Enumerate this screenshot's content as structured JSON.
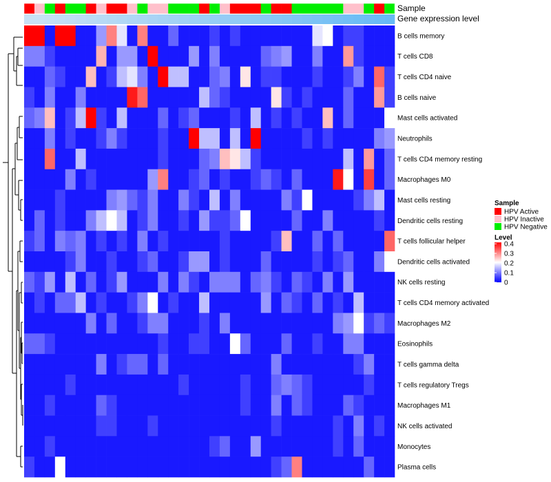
{
  "chart_data": {
    "type": "heatmap",
    "annotation_labels": {
      "sample": "Sample",
      "expression": "Gene expression level"
    },
    "legend_sample": {
      "title": "Sample",
      "entries": [
        {
          "name": "HPV Active",
          "color": "#ff0000"
        },
        {
          "name": "HPV Inactive",
          "color": "#ffc0cb"
        },
        {
          "name": "HPV Negative",
          "color": "#00ee00"
        }
      ]
    },
    "legend_level": {
      "title": "Level",
      "ticks": [
        "0",
        "0.1",
        "0.2",
        "0.3",
        "0.4"
      ],
      "range": [
        0,
        0.4
      ],
      "colors": {
        "low": "#0000ff",
        "mid": "#ffffff",
        "high": "#ff0000"
      }
    },
    "samples": [
      "A",
      "I",
      "N",
      "A",
      "N",
      "N",
      "A",
      "I",
      "A",
      "A",
      "I",
      "N",
      "I",
      "I",
      "N",
      "N",
      "N",
      "A",
      "N",
      "I",
      "A",
      "A",
      "A",
      "N",
      "A",
      "A",
      "N",
      "N",
      "N",
      "N",
      "N",
      "I",
      "I",
      "N",
      "A",
      "N"
    ],
    "expression_annotation": [
      0.7,
      0.7,
      0.72,
      0.74,
      0.76,
      0.78,
      0.8,
      0.82,
      0.84,
      0.86,
      0.88,
      0.9,
      0.92,
      0.94,
      0.96,
      0.98,
      1.0,
      1.02,
      1.04,
      1.06,
      1.08,
      1.1,
      1.12,
      1.14,
      1.16,
      1.18,
      1.2,
      1.22,
      1.24,
      1.26,
      1.28,
      1.3,
      1.32,
      1.34,
      1.36,
      1.38
    ],
    "rows": [
      "B cells memory",
      "T cells CD8",
      "T cells CD4 naive",
      "B cells naive",
      "Mast cells activated",
      "Neutrophils",
      "T cells CD4 memory resting",
      "Macrophages M0",
      "Mast cells resting",
      "Dendritic cells resting",
      "T cells follicular helper",
      "Dendritic cells activated",
      "NK cells resting",
      "T cells CD4 memory activated",
      "Macrophages M2",
      "Eosinophils",
      "T cells gamma delta",
      "T cells regulatory  Tregs",
      "Macrophages M1",
      "NK cells activated",
      "Monocytes",
      "Plasma cells"
    ],
    "values": [
      [
        0.4,
        0.4,
        0.02,
        0.4,
        0.4,
        0.02,
        0.02,
        0.12,
        0.3,
        0.18,
        0.02,
        0.3,
        0.02,
        0.02,
        0.08,
        0.02,
        0.02,
        0.02,
        0.05,
        0.02,
        0.05,
        0.02,
        0.02,
        0.02,
        0.02,
        0.02,
        0.02,
        0.02,
        0.18,
        0.2,
        0.02,
        0.05,
        0.05,
        0.02,
        0.02,
        0.02
      ],
      [
        0.1,
        0.1,
        0.05,
        0.02,
        0.02,
        0.02,
        0.02,
        0.26,
        0.02,
        0.12,
        0.12,
        0.02,
        0.4,
        0.02,
        0.02,
        0.02,
        0.12,
        0.02,
        0.1,
        0.02,
        0.02,
        0.02,
        0.02,
        0.08,
        0.1,
        0.12,
        0.02,
        0.02,
        0.1,
        0.02,
        0.02,
        0.28,
        0.05,
        0.02,
        0.02,
        0.02
      ],
      [
        0.02,
        0.02,
        0.08,
        0.05,
        0.02,
        0.02,
        0.25,
        0.02,
        0.05,
        0.15,
        0.18,
        0.1,
        0.02,
        0.4,
        0.15,
        0.15,
        0.02,
        0.02,
        0.08,
        0.1,
        0.02,
        0.22,
        0.02,
        0.05,
        0.05,
        0.02,
        0.02,
        0.02,
        0.05,
        0.02,
        0.02,
        0.05,
        0.1,
        0.02,
        0.32,
        0.05
      ],
      [
        0.05,
        0.02,
        0.1,
        0.02,
        0.02,
        0.1,
        0.02,
        0.02,
        0.02,
        0.02,
        0.38,
        0.32,
        0.02,
        0.02,
        0.02,
        0.02,
        0.02,
        0.15,
        0.08,
        0.05,
        0.02,
        0.02,
        0.02,
        0.02,
        0.22,
        0.05,
        0.02,
        0.05,
        0.02,
        0.02,
        0.02,
        0.08,
        0.02,
        0.02,
        0.28,
        0.05
      ],
      [
        0.08,
        0.1,
        0.25,
        0.02,
        0.05,
        0.15,
        0.4,
        0.05,
        0.02,
        0.15,
        0.02,
        0.02,
        0.02,
        0.08,
        0.02,
        0.05,
        0.08,
        0.02,
        0.02,
        0.02,
        0.05,
        0.02,
        0.15,
        0.02,
        0.05,
        0.02,
        0.05,
        0.02,
        0.02,
        0.25,
        0.02,
        0.08,
        0.02,
        0.02,
        0.02,
        0.2
      ],
      [
        0.02,
        0.02,
        0.1,
        0.02,
        0.05,
        0.02,
        0.02,
        0.05,
        0.1,
        0.05,
        0.02,
        0.02,
        0.02,
        0.05,
        0.02,
        0.02,
        0.4,
        0.15,
        0.15,
        0.02,
        0.15,
        0.02,
        0.4,
        0.02,
        0.02,
        0.02,
        0.02,
        0.05,
        0.02,
        0.05,
        0.02,
        0.02,
        0.02,
        0.02,
        0.1,
        0.12
      ],
      [
        0.02,
        0.02,
        0.32,
        0.02,
        0.02,
        0.15,
        0.02,
        0.02,
        0.02,
        0.02,
        0.02,
        0.02,
        0.02,
        0.05,
        0.02,
        0.02,
        0.02,
        0.08,
        0.1,
        0.25,
        0.22,
        0.15,
        0.05,
        0.02,
        0.02,
        0.02,
        0.02,
        0.02,
        0.02,
        0.02,
        0.02,
        0.15,
        0.02,
        0.28,
        0.02,
        0.08
      ],
      [
        0.02,
        0.02,
        0.02,
        0.02,
        0.1,
        0.02,
        0.05,
        0.02,
        0.02,
        0.02,
        0.02,
        0.02,
        0.12,
        0.3,
        0.02,
        0.02,
        0.05,
        0.08,
        0.02,
        0.05,
        0.02,
        0.02,
        0.05,
        0.08,
        0.05,
        0.02,
        0.08,
        0.02,
        0.02,
        0.02,
        0.38,
        0.2,
        0.02,
        0.35,
        0.02,
        0.08
      ],
      [
        0.02,
        0.02,
        0.02,
        0.05,
        0.02,
        0.02,
        0.02,
        0.02,
        0.1,
        0.12,
        0.08,
        0.05,
        0.1,
        0.02,
        0.02,
        0.1,
        0.05,
        0.02,
        0.15,
        0.02,
        0.1,
        0.02,
        0.02,
        0.02,
        0.02,
        0.1,
        0.05,
        0.2,
        0.02,
        0.02,
        0.02,
        0.02,
        0.05,
        0.1,
        0.15,
        0.02
      ],
      [
        0.02,
        0.08,
        0.02,
        0.05,
        0.02,
        0.02,
        0.1,
        0.15,
        0.2,
        0.15,
        0.02,
        0.05,
        0.1,
        0.02,
        0.02,
        0.05,
        0.02,
        0.12,
        0.05,
        0.05,
        0.08,
        0.2,
        0.02,
        0.02,
        0.02,
        0.02,
        0.08,
        0.02,
        0.02,
        0.1,
        0.02,
        0.02,
        0.02,
        0.02,
        0.05,
        0.02
      ],
      [
        0.05,
        0.08,
        0.02,
        0.1,
        0.08,
        0.1,
        0.02,
        0.05,
        0.02,
        0.05,
        0.02,
        0.1,
        0.02,
        0.05,
        0.02,
        0.02,
        0.02,
        0.02,
        0.02,
        0.05,
        0.02,
        0.02,
        0.02,
        0.02,
        0.05,
        0.25,
        0.02,
        0.02,
        0.08,
        0.02,
        0.08,
        0.02,
        0.02,
        0.02,
        0.02,
        0.32
      ],
      [
        0.02,
        0.02,
        0.02,
        0.02,
        0.05,
        0.1,
        0.02,
        0.02,
        0.05,
        0.02,
        0.02,
        0.05,
        0.08,
        0.02,
        0.02,
        0.05,
        0.12,
        0.12,
        0.02,
        0.05,
        0.02,
        0.02,
        0.02,
        0.08,
        0.02,
        0.02,
        0.02,
        0.02,
        0.05,
        0.02,
        0.05,
        0.08,
        0.02,
        0.02,
        0.1,
        0.2
      ],
      [
        0.08,
        0.05,
        0.12,
        0.02,
        0.15,
        0.02,
        0.08,
        0.02,
        0.05,
        0.12,
        0.02,
        0.02,
        0.02,
        0.1,
        0.02,
        0.1,
        0.05,
        0.02,
        0.1,
        0.1,
        0.1,
        0.02,
        0.08,
        0.1,
        0.05,
        0.02,
        0.08,
        0.05,
        0.02,
        0.1,
        0.02,
        0.12,
        0.02,
        0.02,
        0.02,
        0.02
      ],
      [
        0.02,
        0.05,
        0.02,
        0.08,
        0.08,
        0.15,
        0.02,
        0.05,
        0.02,
        0.02,
        0.05,
        0.1,
        0.2,
        0.02,
        0.05,
        0.02,
        0.02,
        0.15,
        0.02,
        0.02,
        0.02,
        0.02,
        0.02,
        0.12,
        0.02,
        0.08,
        0.05,
        0.02,
        0.08,
        0.02,
        0.05,
        0.02,
        0.15,
        0.02,
        0.02,
        0.02
      ],
      [
        0.02,
        0.02,
        0.02,
        0.02,
        0.02,
        0.02,
        0.1,
        0.02,
        0.08,
        0.02,
        0.02,
        0.05,
        0.1,
        0.1,
        0.02,
        0.02,
        0.02,
        0.05,
        0.02,
        0.1,
        0.02,
        0.02,
        0.02,
        0.02,
        0.02,
        0.02,
        0.02,
        0.02,
        0.02,
        0.02,
        0.1,
        0.12,
        0.2,
        0.05,
        0.08,
        0.05
      ],
      [
        0.08,
        0.08,
        0.05,
        0.02,
        0.02,
        0.02,
        0.02,
        0.02,
        0.02,
        0.02,
        0.02,
        0.02,
        0.02,
        0.05,
        0.02,
        0.02,
        0.05,
        0.05,
        0.02,
        0.02,
        0.2,
        0.08,
        0.02,
        0.02,
        0.02,
        0.08,
        0.02,
        0.02,
        0.05,
        0.02,
        0.02,
        0.1,
        0.1,
        0.02,
        0.02,
        0.02
      ],
      [
        0.02,
        0.02,
        0.02,
        0.02,
        0.02,
        0.02,
        0.02,
        0.1,
        0.02,
        0.05,
        0.08,
        0.08,
        0.02,
        0.08,
        0.02,
        0.02,
        0.02,
        0.02,
        0.02,
        0.02,
        0.02,
        0.02,
        0.02,
        0.02,
        0.1,
        0.02,
        0.02,
        0.02,
        0.02,
        0.02,
        0.02,
        0.02,
        0.05,
        0.1,
        0.02,
        0.02
      ],
      [
        0.02,
        0.02,
        0.02,
        0.02,
        0.05,
        0.02,
        0.02,
        0.02,
        0.02,
        0.02,
        0.02,
        0.02,
        0.02,
        0.02,
        0.02,
        0.05,
        0.02,
        0.02,
        0.02,
        0.02,
        0.02,
        0.05,
        0.02,
        0.02,
        0.08,
        0.1,
        0.08,
        0.05,
        0.02,
        0.02,
        0.02,
        0.02,
        0.02,
        0.05,
        0.02,
        0.02
      ],
      [
        0.02,
        0.02,
        0.05,
        0.02,
        0.02,
        0.02,
        0.02,
        0.08,
        0.05,
        0.02,
        0.02,
        0.02,
        0.02,
        0.02,
        0.02,
        0.02,
        0.02,
        0.02,
        0.02,
        0.02,
        0.02,
        0.05,
        0.02,
        0.02,
        0.1,
        0.02,
        0.08,
        0.05,
        0.02,
        0.02,
        0.02,
        0.08,
        0.05,
        0.02,
        0.02,
        0.02
      ],
      [
        0.02,
        0.02,
        0.02,
        0.02,
        0.02,
        0.02,
        0.02,
        0.05,
        0.05,
        0.02,
        0.02,
        0.02,
        0.05,
        0.02,
        0.02,
        0.02,
        0.02,
        0.02,
        0.02,
        0.02,
        0.02,
        0.02,
        0.02,
        0.02,
        0.05,
        0.02,
        0.02,
        0.02,
        0.02,
        0.02,
        0.05,
        0.02,
        0.1,
        0.02,
        0.05,
        0.02
      ],
      [
        0.02,
        0.02,
        0.05,
        0.02,
        0.02,
        0.02,
        0.02,
        0.02,
        0.02,
        0.02,
        0.02,
        0.02,
        0.02,
        0.02,
        0.02,
        0.02,
        0.02,
        0.02,
        0.05,
        0.08,
        0.02,
        0.02,
        0.12,
        0.02,
        0.02,
        0.02,
        0.02,
        0.02,
        0.02,
        0.02,
        0.05,
        0.02,
        0.08,
        0.02,
        0.02,
        0.02
      ],
      [
        0.05,
        0.02,
        0.02,
        0.2,
        0.02,
        0.02,
        0.02,
        0.02,
        0.02,
        0.02,
        0.02,
        0.02,
        0.02,
        0.02,
        0.02,
        0.02,
        0.02,
        0.02,
        0.02,
        0.02,
        0.02,
        0.02,
        0.02,
        0.02,
        0.05,
        0.08,
        0.3,
        0.02,
        0.02,
        0.02,
        0.02,
        0.02,
        0.02,
        0.08,
        0.02,
        0.02
      ]
    ]
  }
}
